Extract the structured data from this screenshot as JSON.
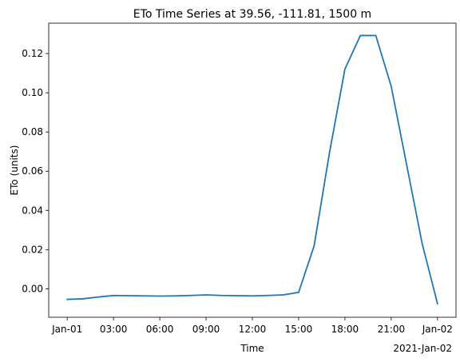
{
  "chart_data": {
    "type": "line",
    "title": "ETo Time Series at 39.56, -111.81, 1500 m",
    "xlabel": "Time",
    "ylabel": "ETo (units)",
    "x_offset_label": "2021-Jan-02",
    "x_ticks": [
      "Jan-01",
      "03:00",
      "06:00",
      "09:00",
      "12:00",
      "15:00",
      "18:00",
      "21:00",
      "Jan-02"
    ],
    "y_ticks": [
      "0.00",
      "0.02",
      "0.04",
      "0.06",
      "0.08",
      "0.10",
      "0.12"
    ],
    "xlim_hours": [
      -1.2,
      25.2
    ],
    "ylim": [
      -0.0145,
      0.1355
    ],
    "grid": false,
    "series": [
      {
        "color": "#1f77b4",
        "x_hours": [
          0,
          1,
          2,
          3,
          4,
          5,
          6,
          7,
          8,
          9,
          10,
          11,
          12,
          13,
          14,
          15,
          16,
          17,
          18,
          19,
          20,
          21,
          22,
          23,
          24
        ],
        "values": [
          -0.0054,
          -0.0051,
          -0.0042,
          -0.0034,
          -0.0035,
          -0.0036,
          -0.0037,
          -0.0036,
          -0.0034,
          -0.0031,
          -0.0034,
          -0.0035,
          -0.0036,
          -0.0034,
          -0.0031,
          -0.0018,
          0.0218,
          0.0695,
          0.1121,
          0.1292,
          0.1292,
          0.1033,
          0.0633,
          0.0233,
          -0.0076
        ]
      }
    ]
  }
}
